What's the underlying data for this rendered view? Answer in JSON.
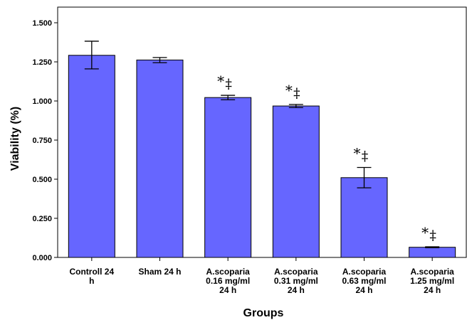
{
  "chart_data": {
    "type": "bar",
    "xlabel": "Groups",
    "ylabel": "Viability (%)",
    "ylim": [
      0,
      1.6
    ],
    "yticks": [
      "0.000",
      "0.250",
      "0.500",
      "0.750",
      "1.000",
      "1.250",
      "1.500"
    ],
    "grid": false,
    "bar_color": "#6666ff",
    "categories": [
      [
        "Controll 24",
        "h"
      ],
      [
        "Sham 24 h"
      ],
      [
        "A.scoparia",
        "0.16 mg/ml",
        "24 h"
      ],
      [
        "A.scoparia",
        "0.31 mg/ml",
        "24 h"
      ],
      [
        "A.scoparia",
        "0.63 mg/ml",
        "24 h"
      ],
      [
        "A.scoparia",
        "1.25 mg/ml",
        "24 h"
      ]
    ],
    "values": [
      1.292,
      1.262,
      1.022,
      0.968,
      0.51,
      0.065
    ],
    "error_low": [
      1.205,
      1.245,
      1.008,
      0.958,
      0.445,
      0.062
    ],
    "error_high": [
      1.382,
      1.278,
      1.036,
      0.978,
      0.575,
      0.068
    ],
    "annotations": [
      {
        "bar": 2,
        "symbols": [
          "*",
          "‡"
        ]
      },
      {
        "bar": 3,
        "symbols": [
          "*",
          "‡"
        ]
      },
      {
        "bar": 4,
        "symbols": [
          "*",
          "‡"
        ]
      },
      {
        "bar": 5,
        "symbols": [
          "*",
          "‡"
        ]
      }
    ]
  }
}
